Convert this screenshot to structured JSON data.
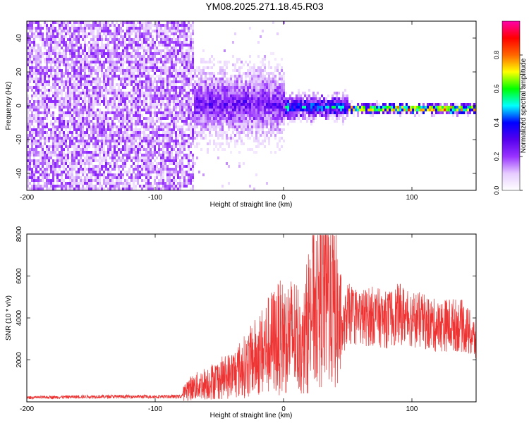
{
  "page": {
    "title": "YM08.2025.271.18.45.R03"
  },
  "colorbar": {
    "label": "Normalized spectral amplitude",
    "ticks": [
      "0.0",
      "0.2",
      "0.4",
      "0.6",
      "0.8"
    ],
    "tick_values": [
      0.0,
      0.2,
      0.4,
      0.6,
      0.8
    ],
    "range": [
      0,
      1
    ],
    "colors": [
      "#ffffff",
      "#e6ccff",
      "#9933ff",
      "#5500ee",
      "#0000ff",
      "#00ffff",
      "#00ff00",
      "#ffff00",
      "#ff6600",
      "#ff0000",
      "#ff00aa"
    ]
  },
  "chart_data": [
    {
      "type": "heatmap",
      "title": "",
      "xlabel": "Height of straight line (km)",
      "ylabel": "Frequency (Hz)",
      "xlim": [
        -200,
        150
      ],
      "ylim": [
        -50,
        50
      ],
      "xticks": [
        -200,
        -100,
        0,
        100
      ],
      "yticks": [
        -40,
        -20,
        0,
        20,
        40
      ],
      "xtick_labels": [
        "-200",
        "-100",
        "0",
        "100"
      ],
      "ytick_labels": [
        "-40",
        "-20",
        "0",
        "20",
        "40"
      ],
      "color_scale": "Normalized spectral amplitude",
      "regions": [
        {
          "x_range": [
            -200,
            -70
          ],
          "freq_range": [
            -50,
            50
          ],
          "amplitude": 0.05,
          "description": "broadband noise"
        },
        {
          "x_range": [
            -70,
            0
          ],
          "freq_center": 2,
          "freq_halfwidth": 15,
          "amplitude": 0.3
        },
        {
          "x_range": [
            0,
            50
          ],
          "freq_center": 0,
          "freq_halfwidth": 5,
          "amplitude": 0.5
        },
        {
          "x_range": [
            50,
            150
          ],
          "freq_center": -1,
          "freq_halfwidth": 2,
          "amplitude": 0.9
        }
      ]
    },
    {
      "type": "line",
      "title": "",
      "xlabel": "Height of straight line (km)",
      "ylabel": "SNR (10 * v/v)",
      "xlim": [
        -200,
        150
      ],
      "ylim": [
        0,
        8000
      ],
      "xticks": [
        -200,
        -100,
        0,
        100
      ],
      "yticks": [
        2000,
        4000,
        6000,
        8000
      ],
      "xtick_labels": [
        "-200",
        "-100",
        "0",
        "100"
      ],
      "ytick_labels": [
        "2000",
        "4000",
        "6000",
        "8000"
      ],
      "color": "#ee3333",
      "series": [
        {
          "x": [
            -200,
            -150,
            -100,
            -80,
            -75,
            -60,
            -50,
            -40,
            -30,
            -20,
            -10,
            -5,
            0,
            10,
            15,
            20,
            25,
            30,
            35,
            40,
            45,
            50,
            60,
            70,
            80,
            90,
            100,
            110,
            120,
            130,
            140,
            150
          ],
          "values": [
            200,
            250,
            250,
            250,
            600,
            900,
            1100,
            1300,
            1700,
            2200,
            2800,
            3000,
            3100,
            3200,
            2500,
            4200,
            5000,
            5400,
            5300,
            4500,
            3200,
            4200,
            4000,
            4100,
            3900,
            4200,
            4000,
            3800,
            3600,
            3700,
            3600,
            2900
          ]
        }
      ]
    }
  ]
}
